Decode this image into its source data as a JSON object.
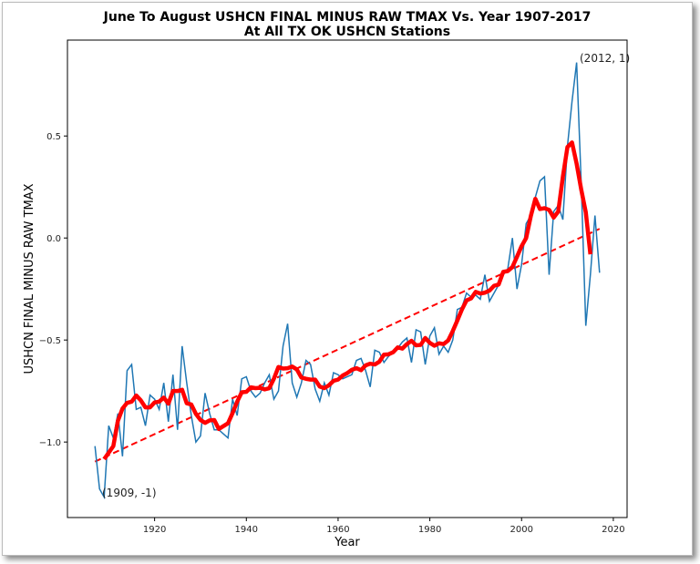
{
  "chart_data": {
    "type": "line",
    "title": "June To August USHCN FINAL MINUS RAW TMAX Vs. Year 1907-2017",
    "subtitle": "At All TX OK USHCN Stations",
    "xlabel": "Year",
    "ylabel": "USHCN FINAL MINUS RAW TMAX",
    "xlim": [
      1901,
      2023
    ],
    "ylim": [
      -1.37,
      0.97
    ],
    "xticks": [
      "1920",
      "1940",
      "1960",
      "1980",
      "2000",
      "2020"
    ],
    "yticks": [
      "−1.0",
      "−0.5",
      "0.0",
      "0.5"
    ],
    "grid": false,
    "x": [
      1907,
      1908,
      1909,
      1910,
      1911,
      1912,
      1913,
      1914,
      1915,
      1916,
      1917,
      1918,
      1919,
      1920,
      1921,
      1922,
      1923,
      1924,
      1925,
      1926,
      1927,
      1928,
      1929,
      1930,
      1931,
      1932,
      1933,
      1934,
      1935,
      1936,
      1937,
      1938,
      1939,
      1940,
      1941,
      1942,
      1943,
      1944,
      1945,
      1946,
      1947,
      1948,
      1949,
      1950,
      1951,
      1952,
      1953,
      1954,
      1955,
      1956,
      1957,
      1958,
      1959,
      1960,
      1961,
      1962,
      1963,
      1964,
      1965,
      1966,
      1967,
      1968,
      1969,
      1970,
      1971,
      1972,
      1973,
      1974,
      1975,
      1976,
      1977,
      1978,
      1979,
      1980,
      1981,
      1982,
      1983,
      1984,
      1985,
      1986,
      1987,
      1988,
      1989,
      1990,
      1991,
      1992,
      1993,
      1994,
      1995,
      1996,
      1997,
      1998,
      1999,
      2000,
      2001,
      2002,
      2003,
      2004,
      2005,
      2006,
      2007,
      2008,
      2009,
      2010,
      2011,
      2012,
      2013,
      2014,
      2015,
      2016,
      2017
    ],
    "series": [
      {
        "kind": "annual",
        "color": "#1f77b4",
        "values": [
          -1.02,
          -1.23,
          -1.27,
          -0.92,
          -0.98,
          -0.86,
          -1.07,
          -0.65,
          -0.62,
          -0.84,
          -0.83,
          -0.92,
          -0.77,
          -0.79,
          -0.84,
          -0.71,
          -0.9,
          -0.67,
          -0.94,
          -0.53,
          -0.71,
          -0.87,
          -1.0,
          -0.97,
          -0.76,
          -0.86,
          -0.94,
          -0.94,
          -0.96,
          -0.98,
          -0.79,
          -0.87,
          -0.69,
          -0.68,
          -0.75,
          -0.78,
          -0.76,
          -0.71,
          -0.67,
          -0.79,
          -0.75,
          -0.53,
          -0.42,
          -0.71,
          -0.78,
          -0.71,
          -0.6,
          -0.62,
          -0.74,
          -0.8,
          -0.71,
          -0.77,
          -0.66,
          -0.67,
          -0.69,
          -0.68,
          -0.67,
          -0.6,
          -0.59,
          -0.65,
          -0.73,
          -0.55,
          -0.56,
          -0.61,
          -0.58,
          -0.56,
          -0.54,
          -0.51,
          -0.49,
          -0.61,
          -0.45,
          -0.46,
          -0.62,
          -0.48,
          -0.44,
          -0.57,
          -0.53,
          -0.56,
          -0.5,
          -0.35,
          -0.34,
          -0.27,
          -0.29,
          -0.28,
          -0.3,
          -0.18,
          -0.31,
          -0.27,
          -0.23,
          -0.18,
          -0.15,
          0.0,
          -0.25,
          -0.13,
          0.07,
          0.11,
          0.2,
          0.28,
          0.3,
          -0.18,
          0.13,
          0.16,
          0.09,
          0.45,
          0.67,
          0.86,
          0.27,
          -0.43,
          -0.18,
          0.11,
          -0.17
        ]
      },
      {
        "kind": "running-mean",
        "color": "#ff0000"
      },
      {
        "kind": "linear-trend",
        "color": "#ff0000"
      }
    ],
    "annotations": [
      {
        "text": "(1909, -1)",
        "x": 1909,
        "y": -1.27
      },
      {
        "text": "(2012, 1)",
        "x": 2012,
        "y": 0.86
      }
    ]
  }
}
